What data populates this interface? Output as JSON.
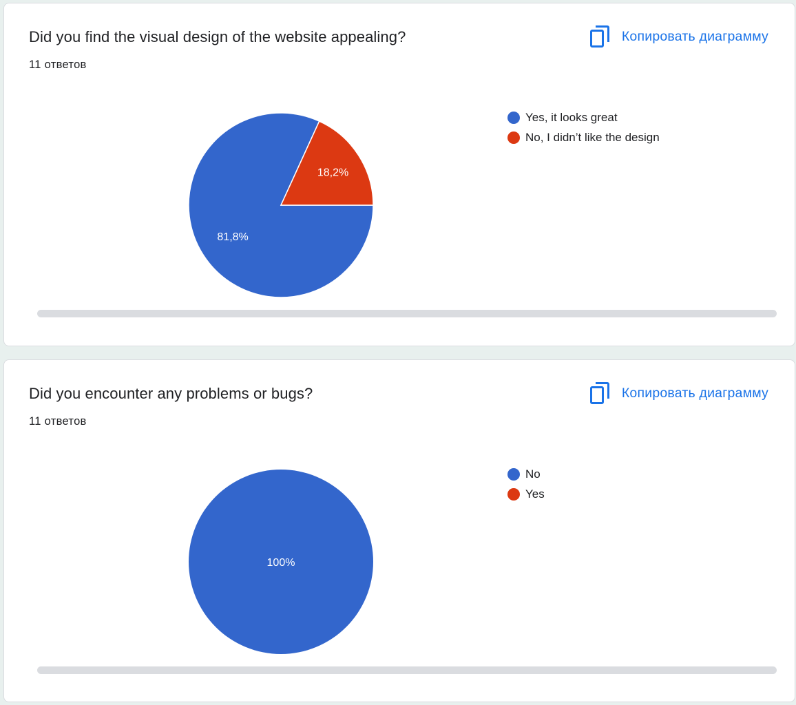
{
  "colors": {
    "series_0": "#3366cc",
    "series_1": "#dc3912",
    "accent": "#1a73e8"
  },
  "cards": [
    {
      "title": "Did you find the visual design of the website appealing?",
      "responses": "11 ответов",
      "copy_label": "Копировать диаграмму",
      "copy_icon": "copy-icon"
    },
    {
      "title": "Did you encounter any problems or bugs?",
      "responses": "11 ответов",
      "copy_label": "Копировать диаграмму",
      "copy_icon": "copy-icon"
    }
  ],
  "chart_data": [
    {
      "type": "pie",
      "title": "Did you find the visual design of the website appealing?",
      "categories": [
        "Yes, it looks great",
        "No, I didn’t like the design"
      ],
      "values": [
        9,
        2
      ],
      "labels": [
        "81,8%",
        "18,2%"
      ],
      "colors": [
        "#3366cc",
        "#dc3912"
      ],
      "legend": "right"
    },
    {
      "type": "pie",
      "title": "Did you encounter any problems or bugs?",
      "categories": [
        "No",
        "Yes"
      ],
      "values": [
        11,
        0
      ],
      "labels": [
        "100%",
        ""
      ],
      "colors": [
        "#3366cc",
        "#dc3912"
      ],
      "legend": "right"
    }
  ]
}
